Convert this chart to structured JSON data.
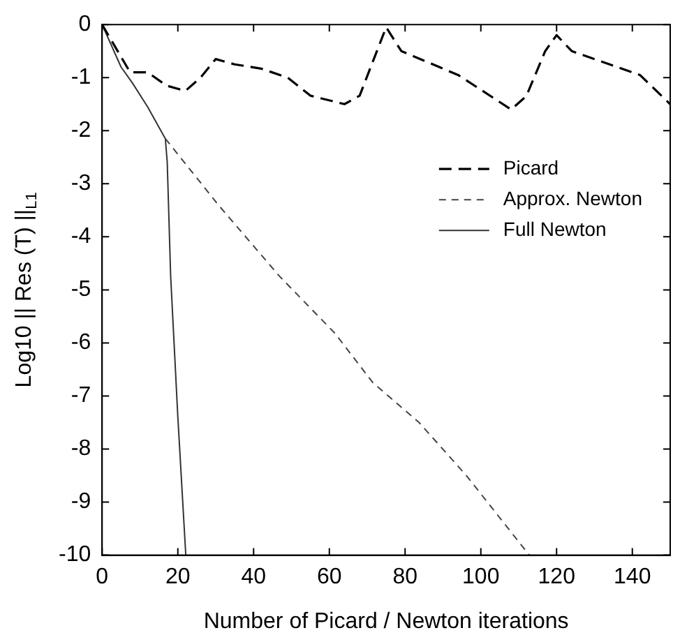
{
  "chart_data": {
    "type": "line",
    "xlabel": "Number of Picard / Newton iterations",
    "ylabel": "Log10 || Res (T) ||$_{L1}$",
    "xlim": [
      0,
      150
    ],
    "ylim": [
      -10,
      0
    ],
    "xticks": [
      0,
      20,
      40,
      60,
      80,
      100,
      120,
      140
    ],
    "yticks": [
      0,
      -1,
      -2,
      -3,
      -4,
      -5,
      -6,
      -7,
      -8,
      -9,
      -10
    ],
    "grid": false,
    "legend": "right",
    "marker": "none",
    "series": [
      {
        "name": "Picard",
        "color": "#000000",
        "line_style": "dashed",
        "x": [
          0,
          7.4,
          12,
          17,
          22,
          26,
          30,
          35,
          42,
          49,
          55,
          64,
          68,
          75,
          79,
          94,
          108,
          112,
          117,
          120,
          124,
          142,
          150
        ],
        "values": [
          0,
          -0.9,
          -0.9,
          -1.15,
          -1.25,
          -1.0,
          -0.65,
          -0.75,
          -0.83,
          -1.0,
          -1.34,
          -1.5,
          -1.34,
          -0.05,
          -0.5,
          -0.95,
          -1.6,
          -1.35,
          -0.5,
          -0.2,
          -0.5,
          -0.95,
          -1.5
        ]
      },
      {
        "name": "Approx. Newton",
        "color": "#444444",
        "line_style": "dashed",
        "x": [
          16.7,
          30.7,
          46.8,
          61.5,
          71.5,
          83.7,
          96.3,
          112.8
        ],
        "values": [
          -2.15,
          -3.4,
          -4.74,
          -5.82,
          -6.75,
          -7.5,
          -8.51,
          -10
        ]
      },
      {
        "name": "Full Newton",
        "color": "#333333",
        "line_style": "solid",
        "x": [
          0,
          5,
          8,
          12,
          16.7,
          17.2,
          18.1,
          20,
          22.1
        ],
        "values": [
          0,
          -0.8,
          -1.1,
          -1.55,
          -2.15,
          -2.6,
          -4.74,
          -7.4,
          -10
        ]
      }
    ]
  }
}
